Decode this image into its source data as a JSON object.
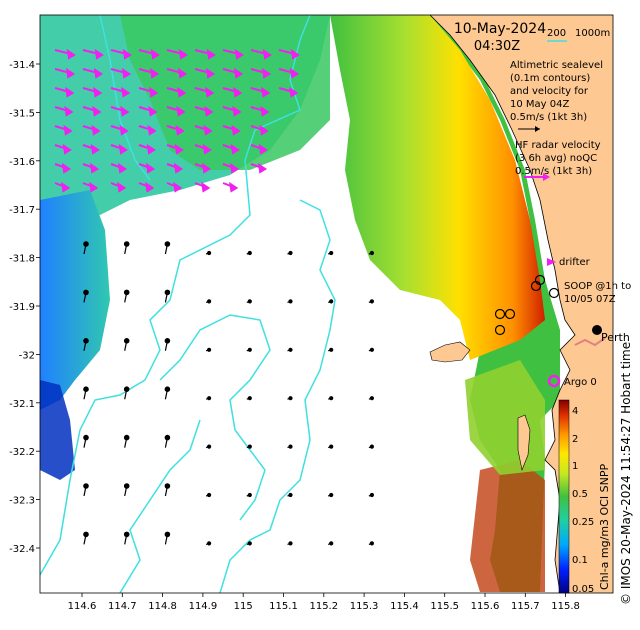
{
  "title": {
    "date": "10-May-2024",
    "time": "04:30Z"
  },
  "depth_contours_legend": {
    "a": "200",
    "b": "1000m"
  },
  "altimetry_note": [
    "Altimetric sealevel",
    "(0.1m contours)",
    "and velocity for",
    "10 May 04Z",
    "0.5m/s (1kt 3h)"
  ],
  "hf_radar_note": [
    "HF radar velocity",
    "(3 6h avg) noQC",
    "0.5m/s (1kt 3h)"
  ],
  "drifter_label": "drifter",
  "soop_label": [
    "SOOP @1h to",
    "10/05 07Z"
  ],
  "city_label": "Perth",
  "argo_label": "Argo 0",
  "credit": "© IMOS 20-May-2024 11:54:27 Hobart time",
  "colorbar": {
    "title": "Chl-a mg/m3 OCI SNPP",
    "ticks": [
      "4",
      "2",
      "1",
      "0.5",
      "0.25",
      "0.1",
      "0.05"
    ]
  },
  "x_ticks": [
    "114.6",
    "114.7",
    "114.8",
    "114.9",
    "115",
    "115.1",
    "115.2",
    "115.3",
    "115.4",
    "115.5",
    "115.6",
    "115.7",
    "115.8"
  ],
  "y_ticks": [
    "-31.4",
    "-31.5",
    "-31.6",
    "-31.7",
    "-31.8",
    "-31.9",
    "-32",
    "-32.1",
    "-32.2",
    "-32.3",
    "-32.4"
  ],
  "colors": {
    "land": "#fdc892",
    "contour": "#3fe0e0",
    "magenta": "#f020f0",
    "chl_low": "#0040d0",
    "chl_mid": "#28b050",
    "chl_high": "#c01000"
  }
}
